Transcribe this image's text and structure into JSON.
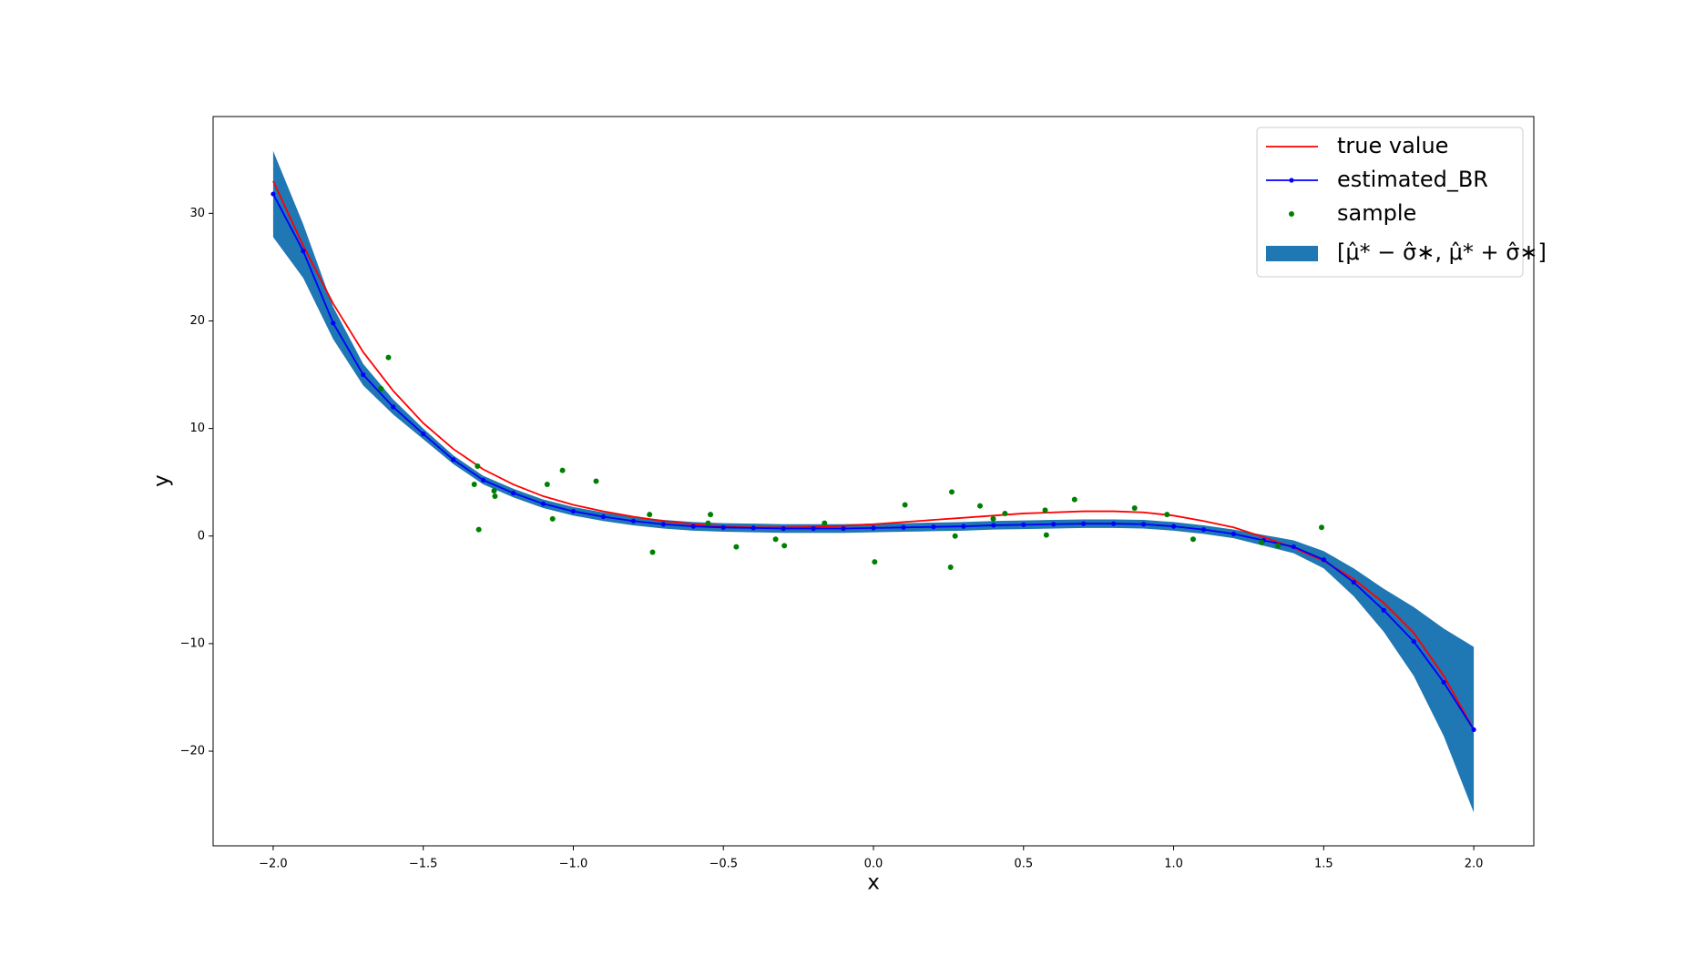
{
  "chart_data": {
    "type": "line",
    "xlabel": "x",
    "ylabel": "y",
    "xlim": [
      -2.2,
      2.2
    ],
    "ylim": [
      -28.8,
      39.0
    ],
    "xticks": [
      {
        "value": -2.0,
        "label": "−2.0"
      },
      {
        "value": -1.5,
        "label": "−1.5"
      },
      {
        "value": -1.0,
        "label": "−1.0"
      },
      {
        "value": -0.5,
        "label": "−0.5"
      },
      {
        "value": 0.0,
        "label": "0.0"
      },
      {
        "value": 0.5,
        "label": "0.5"
      },
      {
        "value": 1.0,
        "label": "1.0"
      },
      {
        "value": 1.5,
        "label": "1.5"
      },
      {
        "value": 2.0,
        "label": "2.0"
      }
    ],
    "yticks": [
      {
        "value": -20,
        "label": "−20"
      },
      {
        "value": -10,
        "label": "−10"
      },
      0,
      10,
      20,
      30
    ],
    "legend": "upper right",
    "x": [
      -2.0,
      -1.9,
      -1.8,
      -1.7,
      -1.6,
      -1.5,
      -1.4,
      -1.3,
      -1.2,
      -1.1,
      -1.0,
      -0.9,
      -0.8,
      -0.7,
      -0.6,
      -0.5,
      -0.4,
      -0.3,
      -0.2,
      -0.1,
      0.0,
      0.1,
      0.2,
      0.3,
      0.4,
      0.5,
      0.6,
      0.7,
      0.8,
      0.9,
      1.0,
      1.1,
      1.2,
      1.3,
      1.4,
      1.5,
      1.6,
      1.7,
      1.8,
      1.9,
      2.0
    ],
    "series": [
      {
        "name": "true value",
        "color": "#ff0000",
        "marker": false,
        "values": [
          33.0,
          27.0,
          21.6,
          17.1,
          13.5,
          10.5,
          8.1,
          6.2,
          4.8,
          3.7,
          2.9,
          2.3,
          1.8,
          1.4,
          1.1,
          0.9,
          0.8,
          0.8,
          0.85,
          0.95,
          1.1,
          1.3,
          1.5,
          1.7,
          1.9,
          2.1,
          2.2,
          2.3,
          2.3,
          2.2,
          1.9,
          1.4,
          0.8,
          -0.1,
          -1.1,
          -2.3,
          -4.0,
          -6.2,
          -9.0,
          -13.0,
          -18.0
        ]
      },
      {
        "name": "estimated_BR",
        "color": "#0000ff",
        "marker": true,
        "values": [
          31.8,
          26.5,
          19.8,
          15.0,
          12.0,
          9.5,
          7.1,
          5.2,
          4.0,
          3.0,
          2.3,
          1.8,
          1.4,
          1.1,
          0.9,
          0.8,
          0.75,
          0.7,
          0.7,
          0.7,
          0.75,
          0.8,
          0.85,
          0.9,
          1.0,
          1.05,
          1.1,
          1.15,
          1.15,
          1.1,
          0.9,
          0.6,
          0.2,
          -0.4,
          -1.0,
          -2.2,
          -4.3,
          -6.9,
          -9.8,
          -13.6,
          -18.0
        ]
      }
    ],
    "band": {
      "name": "[μ̂* − σ̂∗, μ̂* + σ̂∗]",
      "color": "#1f77b4",
      "lower": [
        27.8,
        24.0,
        18.3,
        14.0,
        11.3,
        9.0,
        6.7,
        4.8,
        3.6,
        2.6,
        1.9,
        1.4,
        1.0,
        0.7,
        0.5,
        0.4,
        0.35,
        0.3,
        0.3,
        0.3,
        0.35,
        0.4,
        0.45,
        0.5,
        0.6,
        0.65,
        0.7,
        0.75,
        0.75,
        0.7,
        0.5,
        0.2,
        -0.2,
        -0.9,
        -1.6,
        -3.0,
        -5.6,
        -8.9,
        -13.0,
        -18.6,
        -25.7
      ],
      "upper": [
        35.8,
        29.0,
        21.3,
        16.0,
        12.7,
        10.0,
        7.5,
        5.6,
        4.4,
        3.4,
        2.7,
        2.2,
        1.8,
        1.5,
        1.3,
        1.2,
        1.15,
        1.1,
        1.1,
        1.1,
        1.15,
        1.2,
        1.25,
        1.3,
        1.4,
        1.45,
        1.5,
        1.55,
        1.55,
        1.5,
        1.3,
        1.0,
        0.6,
        0.1,
        -0.4,
        -1.4,
        -3.0,
        -4.9,
        -6.6,
        -8.6,
        -10.3
      ]
    },
    "samples": {
      "name": "sample",
      "color": "#008000",
      "x": [
        -1.616,
        -1.641,
        -1.319,
        -1.33,
        -1.315,
        -1.264,
        -1.261,
        -1.087,
        -1.069,
        -1.036,
        -0.924,
        -0.746,
        -0.736,
        -0.543,
        -0.551,
        -0.457,
        -0.326,
        -0.297,
        -0.163,
        0.004,
        0.105,
        0.261,
        0.257,
        0.272,
        0.355,
        0.399,
        0.438,
        0.572,
        0.576,
        0.67,
        0.87,
        0.978,
        1.065,
        1.293,
        1.348,
        1.493
      ],
      "y": [
        16.6,
        13.7,
        6.5,
        4.8,
        0.6,
        4.2,
        3.7,
        4.8,
        1.6,
        6.1,
        5.1,
        2.0,
        -1.5,
        2.0,
        1.2,
        -1.0,
        -0.3,
        -0.9,
        1.2,
        -2.4,
        2.9,
        4.1,
        -2.9,
        0.0,
        2.8,
        1.6,
        2.1,
        2.4,
        0.1,
        3.4,
        2.6,
        2.0,
        -0.3,
        -0.6,
        -0.9,
        0.8
      ]
    }
  }
}
